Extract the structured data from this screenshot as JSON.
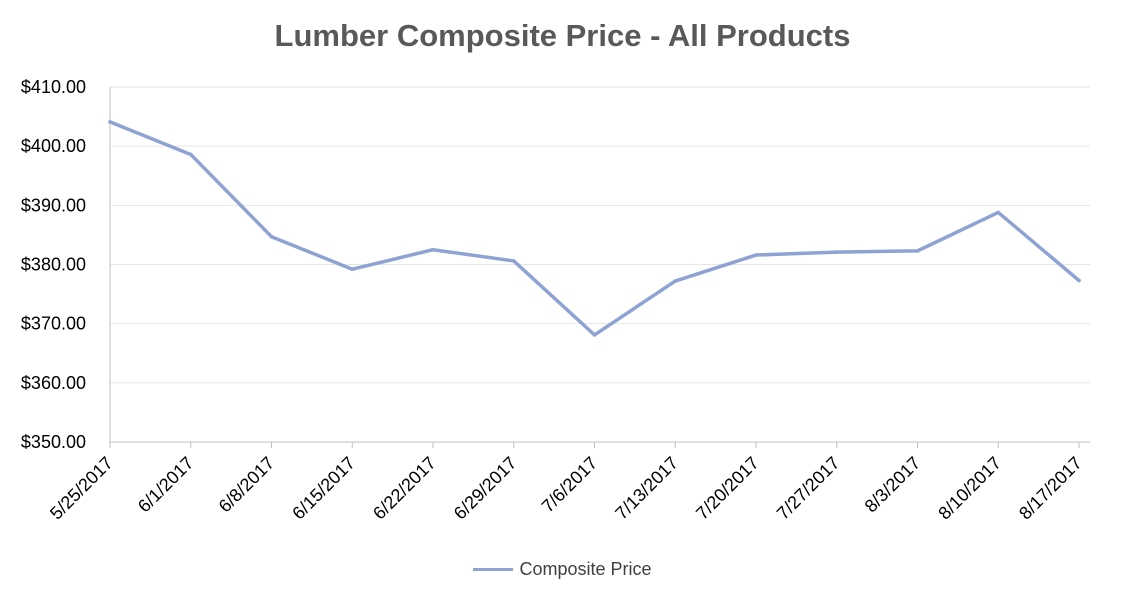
{
  "chart_data": {
    "type": "line",
    "title": "Lumber Composite Price - All Products",
    "xlabel": "",
    "ylabel": "",
    "categories": [
      "5/25/2017",
      "6/1/2017",
      "6/8/2017",
      "6/15/2017",
      "6/22/2017",
      "6/29/2017",
      "7/6/2017",
      "7/13/2017",
      "7/20/2017",
      "7/27/2017",
      "8/3/2017",
      "8/10/2017",
      "8/17/2017"
    ],
    "series": [
      {
        "name": "Composite Price",
        "color": "#8EA3D4",
        "values": [
          404.1,
          398.6,
          384.7,
          379.2,
          382.5,
          380.6,
          368.1,
          377.2,
          381.6,
          382.1,
          382.3,
          388.8,
          377.3
        ]
      }
    ],
    "ylim": [
      350,
      410
    ],
    "yticks": [
      "$350.00",
      "$360.00",
      "$370.00",
      "$380.00",
      "$390.00",
      "$400.00",
      "$410.00"
    ],
    "grid": true,
    "legend": "bottom"
  }
}
